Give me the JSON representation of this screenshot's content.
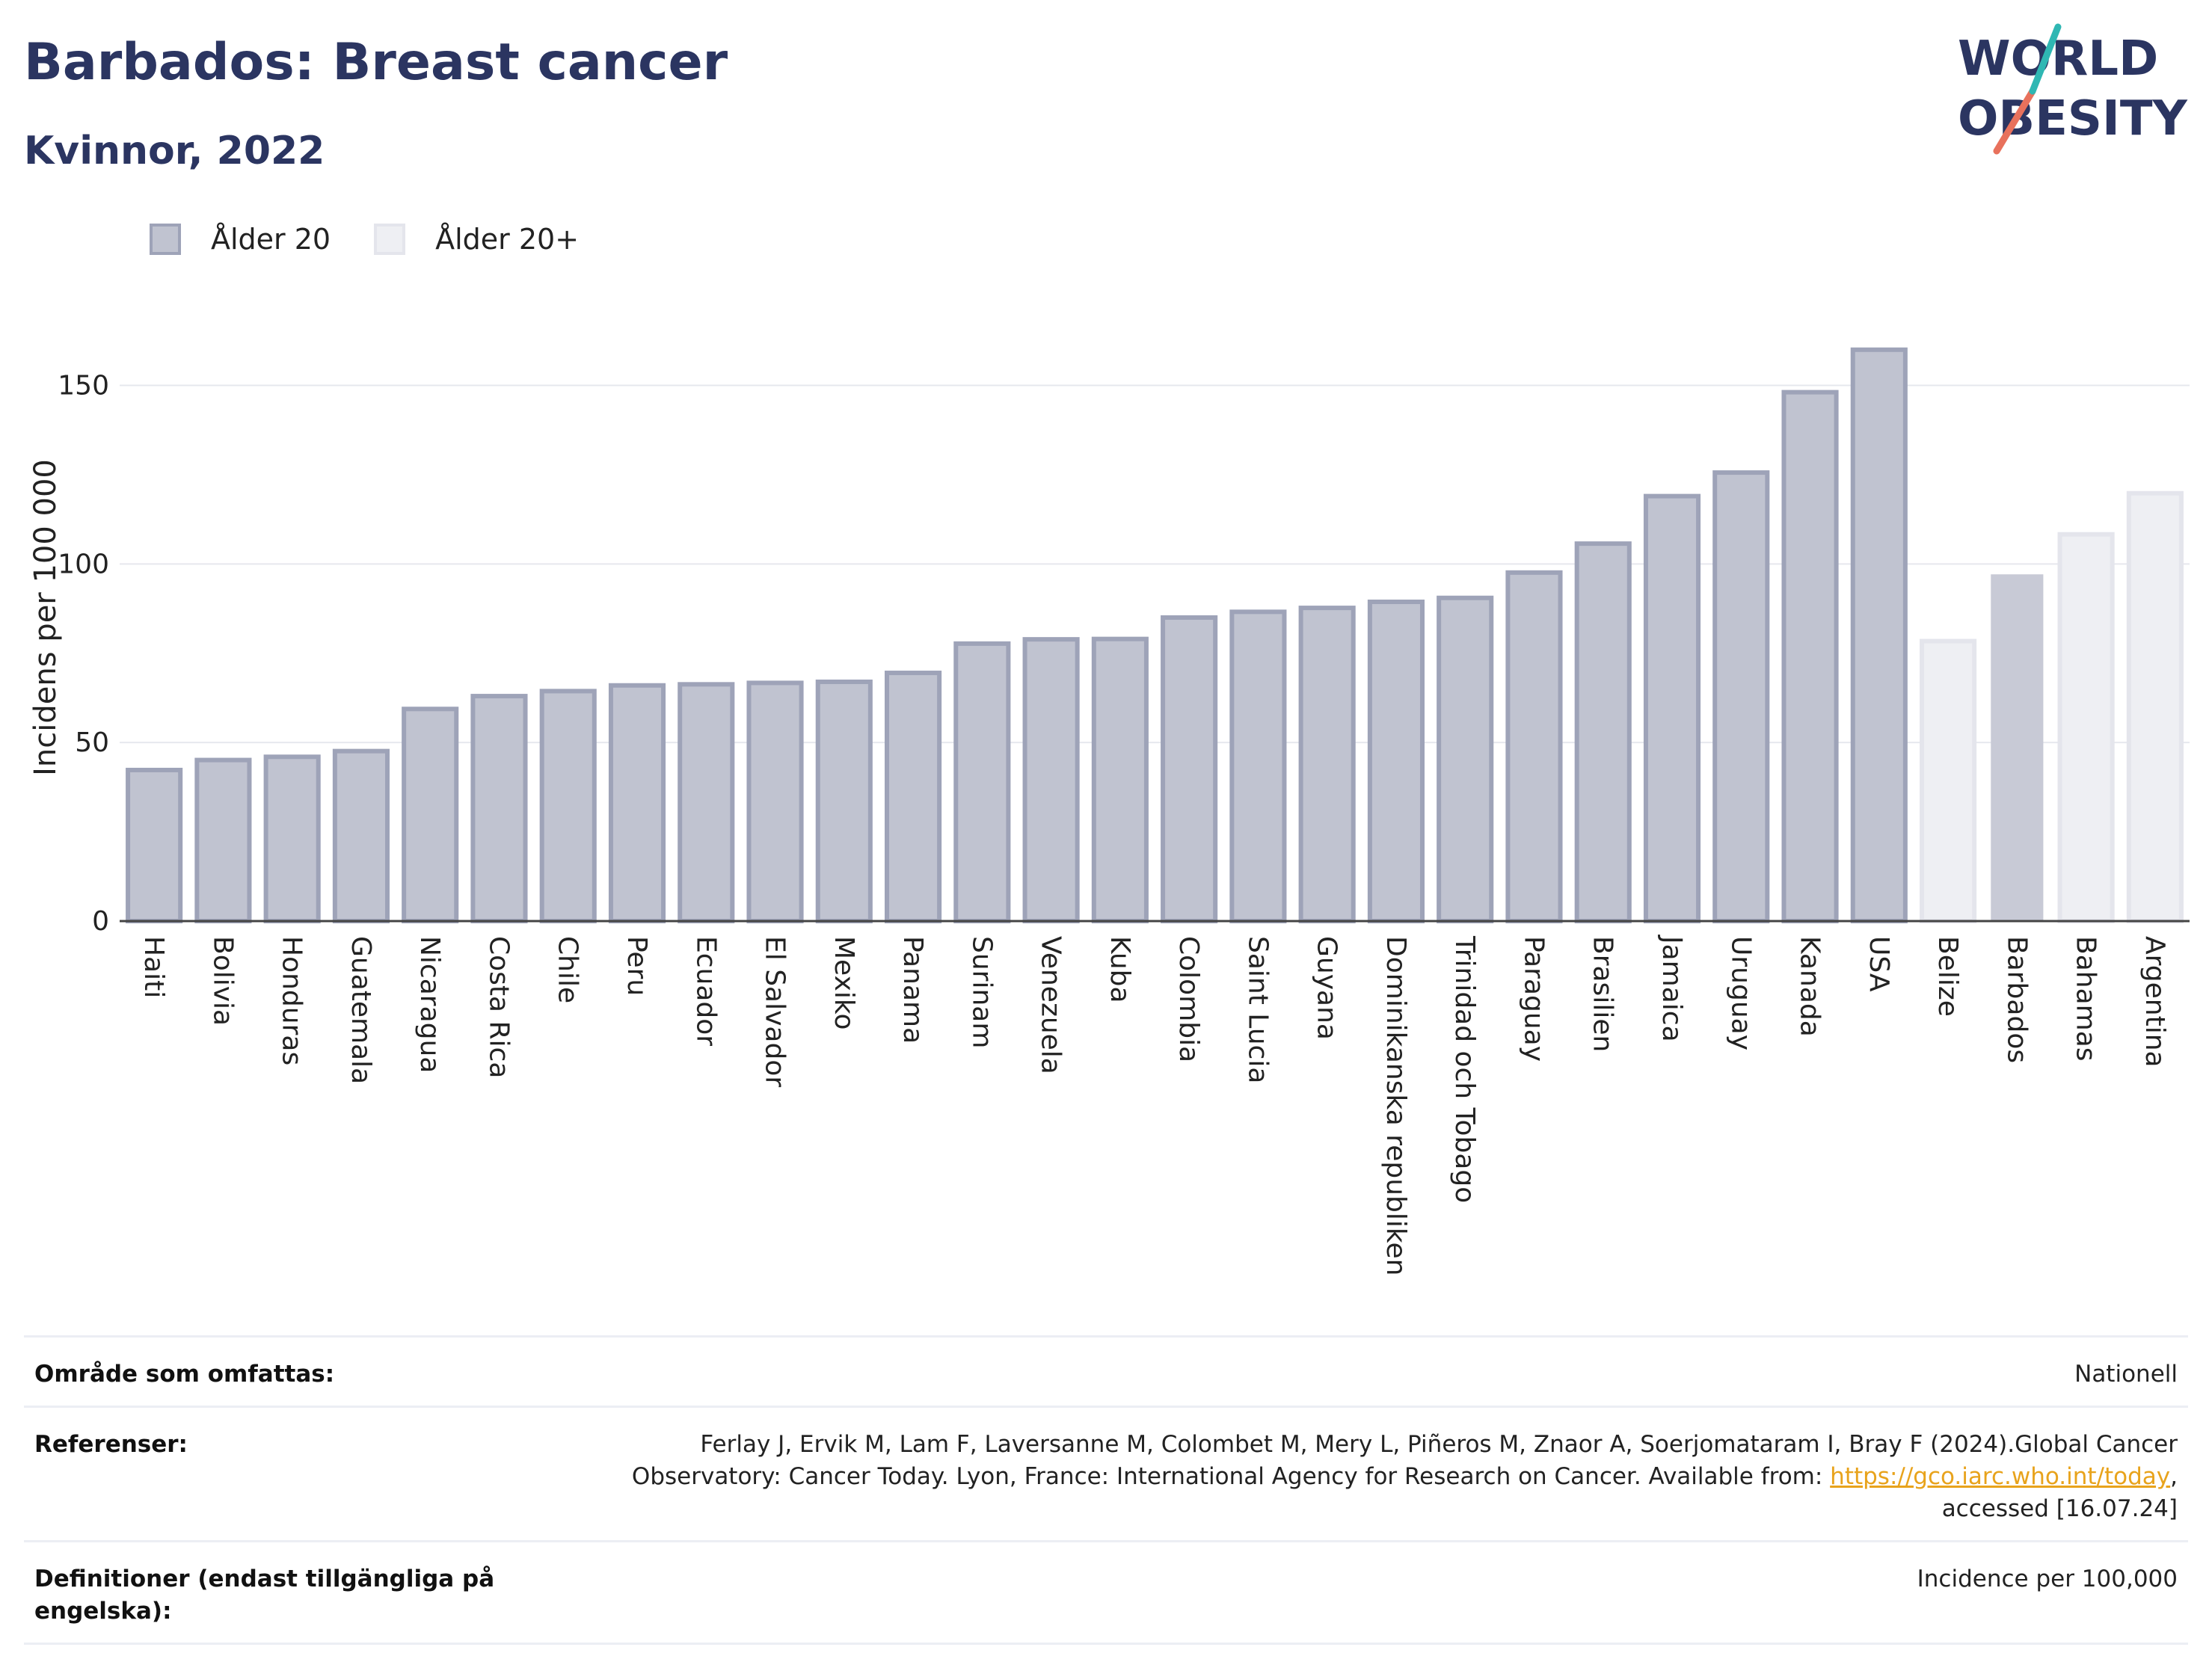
{
  "header": {
    "title": "Barbados: Breast cancer",
    "subtitle": "Kvinnor, 2022",
    "logo_line1": "WORLD",
    "logo_line2": "OBESITY"
  },
  "legend": {
    "items": [
      {
        "label": "Ålder 20",
        "color": "#c0c3d0"
      },
      {
        "label": "Ålder 20+",
        "color": "#eeeff3"
      }
    ]
  },
  "chart_data": {
    "type": "bar",
    "ylabel": "Incidens per 100 000",
    "ylim": [
      0,
      170
    ],
    "yticks": [
      0,
      50,
      100,
      150
    ],
    "grid": true,
    "legend_position": "top-left",
    "categories": [
      "Haiti",
      "Bolivia",
      "Honduras",
      "Guatemala",
      "Nicaragua",
      "Costa Rica",
      "Chile",
      "Peru",
      "Ecuador",
      "El Salvador",
      "Mexiko",
      "Panama",
      "Surinam",
      "Venezuela",
      "Kuba",
      "Colombia",
      "Saint Lucia",
      "Guyana",
      "Dominikanska republiken",
      "Trinidad och Tobago",
      "Paraguay",
      "Brasilien",
      "Jamaica",
      "Uruguay",
      "Kanada",
      "USA",
      "Belize",
      "Barbados",
      "Bahamas",
      "Argentina"
    ],
    "values": [
      42.3,
      45.1,
      46.0,
      47.6,
      59.4,
      63.0,
      64.4,
      66.0,
      66.3,
      66.7,
      67.0,
      69.5,
      77.7,
      78.9,
      79.0,
      85.0,
      86.6,
      87.7,
      89.4,
      90.5,
      97.6,
      105.7,
      119.0,
      125.6,
      148.1,
      160.0,
      78.4,
      97.1,
      108.3,
      119.8
    ],
    "series_group": [
      "Ålder 20",
      "Ålder 20",
      "Ålder 20",
      "Ålder 20",
      "Ålder 20",
      "Ålder 20",
      "Ålder 20",
      "Ålder 20",
      "Ålder 20",
      "Ålder 20",
      "Ålder 20",
      "Ålder 20",
      "Ålder 20",
      "Ålder 20",
      "Ålder 20",
      "Ålder 20",
      "Ålder 20",
      "Ålder 20",
      "Ålder 20",
      "Ålder 20",
      "Ålder 20",
      "Ålder 20",
      "Ålder 20",
      "Ålder 20",
      "Ålder 20",
      "Ålder 20",
      "Ålder 20+",
      "Barbados",
      "Ålder 20+",
      "Ålder 20+"
    ],
    "colors": {
      "age20_fill": "#c0c3d0",
      "age20_stroke": "#9ea3b8",
      "age20plus_fill": "#eeeff3",
      "age20plus_stroke": "#e4e5ec",
      "highlight_fill": "#c8cad6"
    }
  },
  "footer": {
    "coverage_label": "Område som omfattas:",
    "coverage_value": "Nationell",
    "references_label": "Referenser:",
    "references_text": "Ferlay J, Ervik M, Lam F, Laversanne M, Colombet M, Mery L, Piñeros M, Znaor A, Soerjomataram I, Bray F (2024).Global Cancer Observatory: Cancer Today. Lyon, France: International Agency for Research on Cancer. Available from: ",
    "references_link": "https://gco.iarc.who.int/today",
    "references_suffix": ", accessed [16.07.24]",
    "definitions_label": "Definitioner (endast tillgängliga på engelska):",
    "definitions_value": "Incidence per 100,000"
  }
}
